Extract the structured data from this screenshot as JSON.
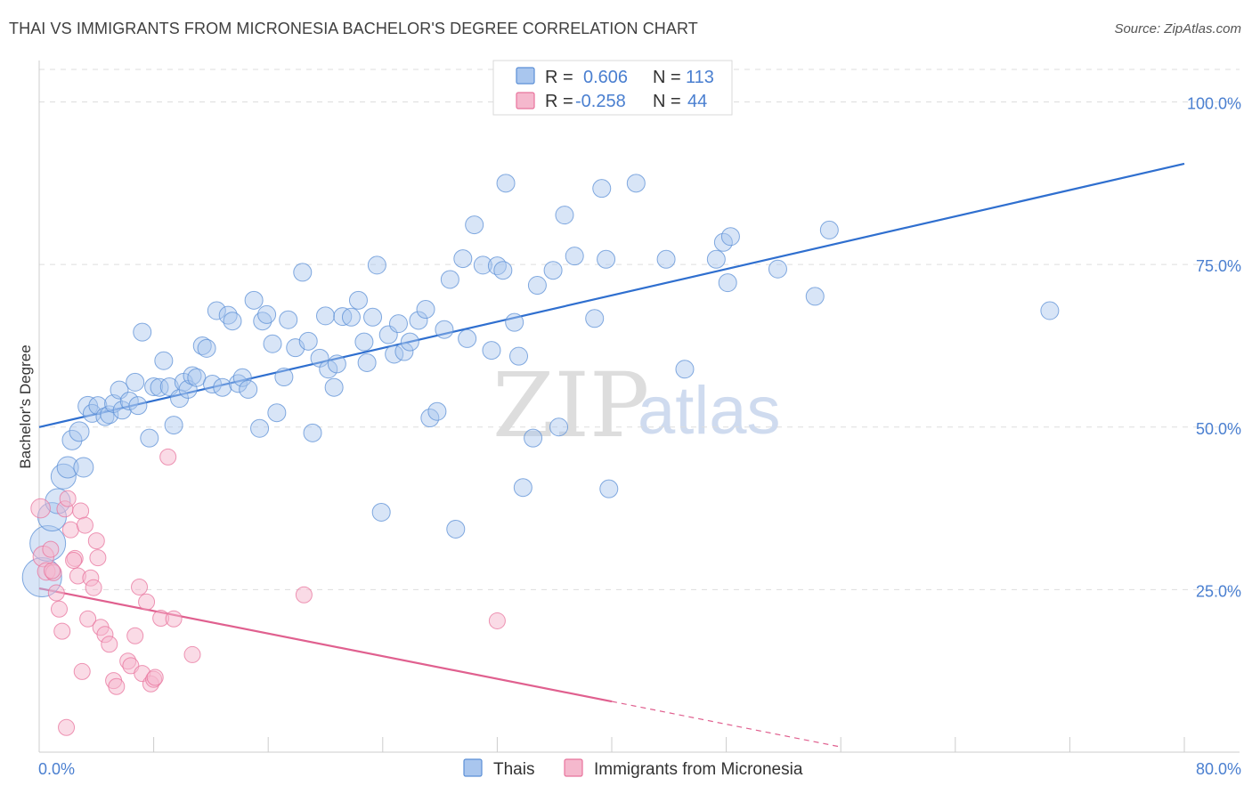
{
  "header": {
    "title": "THAI VS IMMIGRANTS FROM MICRONESIA BACHELOR'S DEGREE CORRELATION CHART",
    "source": "Source: ZipAtlas.com"
  },
  "colors": {
    "thai": "#5b8fd6",
    "thai_fill": "#a9c6ee",
    "micronesia": "#e8739c",
    "micronesia_fill": "#f5b8cd",
    "tick_text": "#4a7fd0",
    "grid": "#dddddd"
  },
  "stats_box": {
    "rows": [
      {
        "r_label": "R = ",
        "r_value": "0.606",
        "n_label": "N = ",
        "n_value": "113"
      },
      {
        "r_label": "R = ",
        "r_value": "-0.258",
        "n_label": "N = ",
        "n_value": "44"
      }
    ]
  },
  "watermark": {
    "zip": "ZIP",
    "atlas": "atlas"
  },
  "chart_data": {
    "type": "scatter",
    "title": "THAI VS IMMIGRANTS FROM MICRONESIA BACHELOR'S DEGREE CORRELATION CHART",
    "xlabel": "",
    "ylabel": "Bachelor's Degree",
    "xlim": [
      0,
      80
    ],
    "ylim": [
      0,
      105
    ],
    "x_tick_labels": [
      "0.0%",
      "80.0%"
    ],
    "y_ticks": [
      25,
      50,
      75,
      100
    ],
    "y_tick_labels": [
      "25.0%",
      "50.0%",
      "75.0%",
      "100.0%"
    ],
    "grid": true,
    "legend_position": "bottom",
    "series": [
      {
        "name": "Thais",
        "color": "#5b8fd6",
        "r": "0.606",
        "n": "113",
        "trend": {
          "x0": 0,
          "y0": 50.0,
          "x1": 80,
          "y1": 90.5
        },
        "points": [
          [
            0.2,
            26.9,
            2.2
          ],
          [
            0.6,
            32.1,
            2.0
          ],
          [
            0.9,
            36.2,
            1.6
          ],
          [
            1.3,
            38.6,
            1.4
          ],
          [
            1.7,
            42.4,
            1.4
          ],
          [
            2.0,
            43.8,
            1.2
          ],
          [
            2.3,
            48.0,
            1.1
          ],
          [
            2.8,
            49.3,
            1.1
          ],
          [
            3.1,
            43.8,
            1.1
          ],
          [
            3.4,
            53.2,
            1.1
          ],
          [
            3.7,
            52.1,
            1.0
          ],
          [
            4.1,
            53.3,
            1.0
          ],
          [
            4.6,
            51.6,
            1.0
          ],
          [
            4.9,
            51.9,
            1.0
          ],
          [
            5.2,
            53.6,
            1.0
          ],
          [
            5.6,
            55.7,
            1.0
          ],
          [
            5.8,
            52.6,
            1.0
          ],
          [
            6.3,
            54.0,
            1.0
          ],
          [
            6.7,
            56.9,
            1.0
          ],
          [
            6.9,
            53.3,
            1.0
          ],
          [
            7.2,
            64.6,
            1.0
          ],
          [
            7.7,
            48.3,
            1.0
          ],
          [
            8.0,
            56.2,
            1.0
          ],
          [
            8.4,
            56.1,
            1.0
          ],
          [
            8.7,
            60.2,
            1.0
          ],
          [
            9.1,
            56.2,
            1.0
          ],
          [
            9.4,
            50.3,
            1.0
          ],
          [
            9.8,
            54.4,
            1.0
          ],
          [
            10.1,
            56.9,
            1.0
          ],
          [
            10.4,
            55.8,
            1.0
          ],
          [
            10.7,
            57.9,
            1.0
          ],
          [
            11.0,
            57.6,
            1.0
          ],
          [
            11.4,
            62.5,
            1.0
          ],
          [
            11.7,
            62.1,
            1.0
          ],
          [
            12.1,
            56.6,
            1.0
          ],
          [
            12.4,
            67.9,
            1.0
          ],
          [
            12.8,
            56.1,
            1.0
          ],
          [
            13.2,
            67.2,
            1.0
          ],
          [
            13.5,
            66.3,
            1.0
          ],
          [
            13.9,
            56.7,
            1.0
          ],
          [
            14.2,
            57.6,
            1.0
          ],
          [
            14.6,
            55.8,
            1.0
          ],
          [
            15.0,
            69.5,
            1.0
          ],
          [
            15.4,
            49.8,
            1.0
          ],
          [
            15.6,
            66.3,
            1.0
          ],
          [
            15.9,
            67.3,
            1.0
          ],
          [
            16.3,
            62.8,
            1.0
          ],
          [
            16.6,
            52.2,
            1.0
          ],
          [
            17.1,
            57.7,
            1.0
          ],
          [
            17.4,
            66.5,
            1.0
          ],
          [
            17.9,
            62.2,
            1.0
          ],
          [
            18.4,
            73.8,
            1.0
          ],
          [
            18.8,
            63.2,
            1.0
          ],
          [
            19.1,
            49.1,
            1.0
          ],
          [
            19.6,
            60.6,
            1.0
          ],
          [
            20.0,
            67.1,
            1.0
          ],
          [
            20.2,
            58.9,
            1.0
          ],
          [
            20.6,
            56.1,
            1.0
          ],
          [
            20.8,
            59.7,
            1.0
          ],
          [
            21.2,
            67.0,
            1.0
          ],
          [
            21.8,
            66.9,
            1.0
          ],
          [
            22.3,
            69.5,
            1.0
          ],
          [
            22.7,
            63.1,
            1.0
          ],
          [
            22.9,
            59.9,
            1.0
          ],
          [
            23.3,
            66.9,
            1.0
          ],
          [
            23.6,
            74.9,
            1.0
          ],
          [
            23.9,
            36.9,
            1.0
          ],
          [
            24.4,
            64.2,
            1.0
          ],
          [
            24.8,
            61.2,
            1.0
          ],
          [
            25.1,
            65.9,
            1.0
          ],
          [
            25.5,
            61.6,
            1.0
          ],
          [
            25.9,
            63.1,
            1.0
          ],
          [
            26.5,
            66.4,
            1.0
          ],
          [
            27.0,
            68.1,
            1.0
          ],
          [
            27.3,
            51.4,
            1.0
          ],
          [
            27.8,
            52.4,
            1.0
          ],
          [
            28.3,
            65.0,
            1.0
          ],
          [
            28.7,
            72.7,
            1.0
          ],
          [
            29.1,
            34.3,
            1.0
          ],
          [
            29.6,
            75.9,
            1.0
          ],
          [
            29.9,
            63.6,
            1.0
          ],
          [
            30.4,
            81.1,
            1.0
          ],
          [
            31.0,
            74.9,
            1.0
          ],
          [
            31.6,
            61.8,
            1.0
          ],
          [
            32.0,
            74.8,
            1.0
          ],
          [
            32.4,
            74.1,
            1.0
          ],
          [
            32.6,
            87.5,
            1.0
          ],
          [
            33.2,
            66.1,
            1.0
          ],
          [
            33.5,
            60.9,
            1.0
          ],
          [
            33.8,
            40.7,
            1.0
          ],
          [
            34.5,
            48.3,
            1.0
          ],
          [
            34.8,
            71.8,
            1.0
          ],
          [
            35.9,
            74.1,
            1.0
          ],
          [
            36.3,
            50.0,
            1.0
          ],
          [
            36.7,
            82.6,
            1.0
          ],
          [
            37.4,
            76.3,
            1.0
          ],
          [
            38.8,
            66.7,
            1.0
          ],
          [
            39.3,
            86.7,
            1.0
          ],
          [
            39.6,
            75.8,
            1.0
          ],
          [
            39.8,
            40.5,
            1.0
          ],
          [
            41.7,
            87.5,
            1.0
          ],
          [
            43.8,
            75.8,
            1.0
          ],
          [
            45.1,
            58.9,
            1.0
          ],
          [
            47.3,
            75.8,
            1.0
          ],
          [
            47.8,
            78.4,
            1.0
          ],
          [
            48.3,
            79.3,
            1.0
          ],
          [
            48.1,
            72.2,
            1.0
          ],
          [
            51.6,
            74.3,
            1.0
          ],
          [
            54.2,
            70.1,
            1.0
          ],
          [
            55.2,
            80.3,
            1.0
          ],
          [
            70.6,
            67.9,
            1.0
          ]
        ]
      },
      {
        "name": "Immigrants from Micronesia",
        "color": "#e8739c",
        "r": "-0.258",
        "n": "44",
        "trend": {
          "x0": 0,
          "y0": 25.2,
          "x1": 40,
          "y1": 7.8
        },
        "trend_dashed": {
          "x0": 40,
          "y0": 7.8,
          "x1": 56,
          "y1": 0.8
        },
        "points": [
          [
            0.1,
            37.5,
            1.2
          ],
          [
            0.3,
            30.1,
            1.3
          ],
          [
            0.5,
            27.8,
            1.1
          ],
          [
            0.8,
            31.2,
            1.0
          ],
          [
            1.0,
            27.6,
            1.0
          ],
          [
            1.2,
            24.5,
            1.0
          ],
          [
            1.4,
            22.0,
            1.0
          ],
          [
            1.6,
            18.6,
            1.0
          ],
          [
            1.8,
            37.4,
            1.0
          ],
          [
            1.9,
            3.8,
            1.0
          ],
          [
            2.0,
            39.0,
            1.0
          ],
          [
            2.2,
            34.2,
            1.0
          ],
          [
            2.5,
            29.8,
            1.0
          ],
          [
            2.7,
            27.1,
            1.0
          ],
          [
            2.9,
            37.1,
            1.0
          ],
          [
            3.0,
            12.4,
            1.0
          ],
          [
            3.2,
            34.9,
            1.0
          ],
          [
            3.4,
            20.5,
            1.0
          ],
          [
            3.6,
            26.8,
            1.0
          ],
          [
            3.8,
            25.3,
            1.0
          ],
          [
            4.0,
            32.5,
            1.0
          ],
          [
            4.1,
            29.9,
            1.0
          ],
          [
            4.3,
            19.2,
            1.0
          ],
          [
            4.6,
            18.1,
            1.0
          ],
          [
            4.9,
            16.6,
            1.0
          ],
          [
            5.2,
            11.0,
            1.0
          ],
          [
            5.4,
            10.1,
            1.0
          ],
          [
            6.2,
            14.0,
            1.0
          ],
          [
            6.4,
            13.3,
            1.0
          ],
          [
            6.7,
            17.9,
            1.0
          ],
          [
            7.0,
            25.4,
            1.0
          ],
          [
            7.2,
            12.1,
            1.0
          ],
          [
            7.5,
            23.1,
            1.0
          ],
          [
            7.8,
            10.5,
            1.0
          ],
          [
            8.0,
            11.2,
            1.0
          ],
          [
            8.1,
            11.5,
            1.0
          ],
          [
            8.5,
            20.6,
            1.0
          ],
          [
            9.0,
            45.4,
            1.0
          ],
          [
            9.4,
            20.5,
            1.0
          ],
          [
            10.7,
            15.0,
            1.0
          ],
          [
            18.5,
            24.2,
            1.0
          ],
          [
            32.0,
            20.2,
            1.0
          ],
          [
            0.9,
            27.9,
            1.0
          ],
          [
            2.4,
            29.5,
            1.0
          ]
        ]
      }
    ]
  }
}
